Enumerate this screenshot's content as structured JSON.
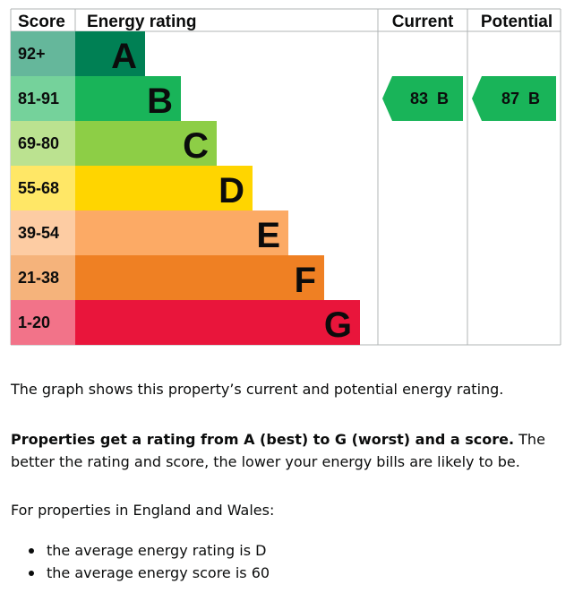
{
  "chart_data": {
    "type": "table",
    "headers": {
      "score": "Score",
      "rating": "Energy rating",
      "current": "Current",
      "potential": "Potential"
    },
    "bands": [
      {
        "letter": "A",
        "range": "92+",
        "color": "#008054",
        "soft": "#65b79b"
      },
      {
        "letter": "B",
        "range": "81-91",
        "color": "#19b459",
        "soft": "#75d29b"
      },
      {
        "letter": "C",
        "range": "69-80",
        "color": "#8dce46",
        "soft": "#bbe290"
      },
      {
        "letter": "D",
        "range": "55-68",
        "color": "#ffd500",
        "soft": "#ffe766"
      },
      {
        "letter": "E",
        "range": "39-54",
        "color": "#fcaa65",
        "soft": "#fdcca3"
      },
      {
        "letter": "F",
        "range": "21-38",
        "color": "#ef8023",
        "soft": "#f5b37b"
      },
      {
        "letter": "G",
        "range": "1-20",
        "color": "#e9153b",
        "soft": "#f27389"
      }
    ],
    "current": {
      "score": 83,
      "band": "B",
      "label": "83  B"
    },
    "potential": {
      "score": 87,
      "band": "B",
      "label": "87  B"
    }
  },
  "description": {
    "intro": "The graph shows this property’s current and potential energy rating.",
    "rating_bold": "Properties get a rating from A (best) to G (worst) and a score.",
    "rating_rest": " The better the rating and score, the lower your energy bills are likely to be.",
    "averages_intro": "For properties in England and Wales:",
    "averages": [
      "the average energy rating is D",
      "the average energy score is 60"
    ]
  }
}
